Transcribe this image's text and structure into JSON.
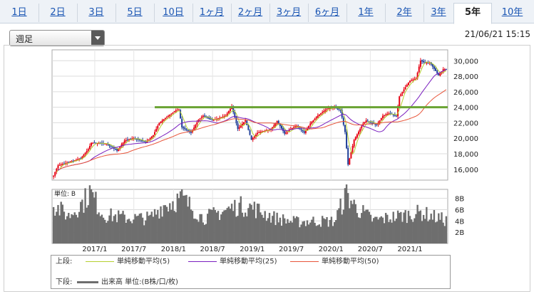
{
  "tabs": [
    {
      "label": "1日",
      "active": false
    },
    {
      "label": "2日",
      "active": false
    },
    {
      "label": "3日",
      "active": false
    },
    {
      "label": "5日",
      "active": false
    },
    {
      "label": "10日",
      "active": false
    },
    {
      "label": "1ヶ月",
      "active": false
    },
    {
      "label": "2ヶ月",
      "active": false
    },
    {
      "label": "3ヶ月",
      "active": false
    },
    {
      "label": "6ヶ月",
      "active": false
    },
    {
      "label": "1年",
      "active": false
    },
    {
      "label": "2年",
      "active": false
    },
    {
      "label": "3年",
      "active": false
    },
    {
      "label": "5年",
      "active": true
    },
    {
      "label": "10年",
      "active": false
    }
  ],
  "period_select": {
    "value": "週足"
  },
  "timestamp": "21/06/21 15:15",
  "legend": {
    "upper_label": "上段:",
    "ma5": "単純移動平均(5)",
    "ma25": "単純移動平均(25)",
    "ma50": "単純移動平均(50)",
    "lower_label": "下段:",
    "volume": "出来高 単位:(B株/口/枚)"
  },
  "colors": {
    "up_candle": "#e60012",
    "down_candle": "#1f3f99",
    "ma5": "#b5cf2f",
    "ma25": "#7a1fbf",
    "ma50": "#e8553a",
    "resistance": "#6aa333",
    "volume": "#6e6e6e"
  },
  "chart_data": [
    {
      "type": "candlestick",
      "yticks": [
        "30,000",
        "28,000",
        "26,000",
        "24,000",
        "22,000",
        "20,000",
        "18,000",
        "16,000"
      ],
      "ylim": [
        14600,
        31400
      ],
      "resistance_level": 24000,
      "anchors": [
        [
          "2016-06-24",
          15200
        ],
        [
          "2016-07-15",
          16500
        ],
        [
          "2016-09-02",
          16900
        ],
        [
          "2016-10-28",
          17400
        ],
        [
          "2016-12-02",
          18600
        ],
        [
          "2016-12-16",
          19400
        ],
        [
          "2017-02-24",
          19300
        ],
        [
          "2017-04-14",
          18400
        ],
        [
          "2017-05-19",
          19700
        ],
        [
          "2017-06-30",
          20000
        ],
        [
          "2017-08-25",
          19500
        ],
        [
          "2017-09-29",
          20400
        ],
        [
          "2017-10-27",
          22000
        ],
        [
          "2017-11-24",
          22600
        ],
        [
          "2018-01-12",
          23600
        ],
        [
          "2018-01-26",
          23700
        ],
        [
          "2018-02-09",
          21400
        ],
        [
          "2018-03-23",
          20700
        ],
        [
          "2018-04-27",
          22400
        ],
        [
          "2018-05-18",
          22900
        ],
        [
          "2018-06-29",
          22300
        ],
        [
          "2018-08-31",
          22900
        ],
        [
          "2018-09-28",
          24100
        ],
        [
          "2018-10-26",
          21200
        ],
        [
          "2018-11-30",
          22300
        ],
        [
          "2018-12-28",
          19800
        ],
        [
          "2019-01-25",
          20700
        ],
        [
          "2019-03-29",
          21200
        ],
        [
          "2019-04-26",
          22200
        ],
        [
          "2019-05-31",
          20600
        ],
        [
          "2019-06-28",
          21200
        ],
        [
          "2019-07-26",
          21600
        ],
        [
          "2019-08-30",
          20700
        ],
        [
          "2019-09-27",
          21900
        ],
        [
          "2019-10-31",
          22900
        ],
        [
          "2019-12-13",
          23800
        ],
        [
          "2020-01-17",
          24000
        ],
        [
          "2020-02-14",
          23600
        ],
        [
          "2020-03-06",
          20800
        ],
        [
          "2020-03-20",
          16600
        ],
        [
          "2020-04-17",
          19800
        ],
        [
          "2020-05-29",
          21900
        ],
        [
          "2020-06-12",
          22300
        ],
        [
          "2020-07-31",
          21700
        ],
        [
          "2020-08-28",
          22900
        ],
        [
          "2020-09-25",
          23200
        ],
        [
          "2020-10-30",
          22900
        ],
        [
          "2020-11-13",
          25400
        ],
        [
          "2020-12-30",
          27400
        ],
        [
          "2021-01-29",
          27700
        ],
        [
          "2021-02-19",
          30000
        ],
        [
          "2021-03-12",
          29700
        ],
        [
          "2021-04-02",
          29800
        ],
        [
          "2021-05-14",
          28100
        ],
        [
          "2021-06-04",
          28900
        ],
        [
          "2021-06-18",
          28900
        ]
      ],
      "xticks": [
        "2017/1",
        "2017/7",
        "2018/1",
        "2018/7",
        "2019/1",
        "2019/7",
        "2020/1",
        "2020/7",
        "2021/1"
      ]
    },
    {
      "type": "bar",
      "unit_label": "単位: B",
      "yticks": [
        "8B",
        "6B",
        "4B",
        "2B"
      ],
      "ylim": [
        0,
        9.6
      ],
      "anchors": [
        [
          "2016-06-24",
          7.0
        ],
        [
          "2016-09-02",
          5.0
        ],
        [
          "2016-11-11",
          7.6
        ],
        [
          "2016-12-09",
          9.4
        ],
        [
          "2017-02-10",
          5.2
        ],
        [
          "2017-06-16",
          4.6
        ],
        [
          "2017-09-15",
          4.6
        ],
        [
          "2017-11-10",
          6.8
        ],
        [
          "2018-02-09",
          8.2
        ],
        [
          "2018-05-18",
          4.6
        ],
        [
          "2018-10-26",
          6.8
        ],
        [
          "2018-12-28",
          6.6
        ],
        [
          "2019-04-19",
          4.6
        ],
        [
          "2019-07-19",
          3.9
        ],
        [
          "2019-10-18",
          4.1
        ],
        [
          "2020-01-17",
          4.0
        ],
        [
          "2020-03-13",
          9.0
        ],
        [
          "2020-04-24",
          6.6
        ],
        [
          "2020-07-17",
          4.2
        ],
        [
          "2020-11-13",
          5.0
        ],
        [
          "2021-02-19",
          5.6
        ],
        [
          "2021-06-18",
          4.2
        ]
      ]
    }
  ]
}
